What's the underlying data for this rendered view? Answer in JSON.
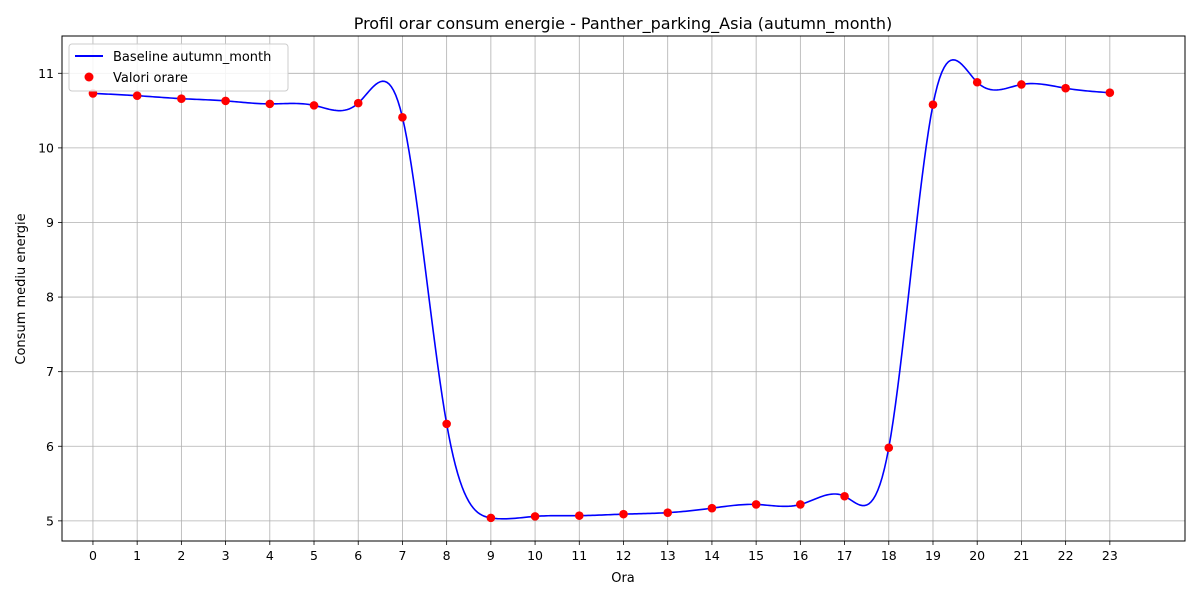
{
  "chart_data": {
    "type": "line",
    "title": "Profil orar consum energie - Panther_parking_Asia (autumn_month)",
    "xlabel": "Ora",
    "ylabel": "Consum mediu energie",
    "x": [
      0,
      1,
      2,
      3,
      4,
      5,
      6,
      7,
      8,
      9,
      10,
      11,
      12,
      13,
      14,
      15,
      16,
      17,
      18,
      19,
      20,
      21,
      22,
      23
    ],
    "x_ticks": [
      "0",
      "1",
      "2",
      "3",
      "4",
      "5",
      "6",
      "7",
      "8",
      "9",
      "10",
      "11",
      "12",
      "13",
      "14",
      "15",
      "16",
      "17",
      "18",
      "19",
      "20",
      "21",
      "22",
      "23"
    ],
    "xlim": [
      -0.7,
      24.7
    ],
    "y_ticks": [
      "5",
      "6",
      "7",
      "8",
      "9",
      "10",
      "11"
    ],
    "ylim": [
      4.73,
      11.5
    ],
    "grid": true,
    "legend_position": "top-left",
    "series": [
      {
        "name": "Baseline autumn_month",
        "style": "smooth-line",
        "color": "#0000ff",
        "values": [
          10.73,
          10.7,
          10.66,
          10.63,
          10.59,
          10.57,
          10.6,
          10.41,
          6.3,
          5.04,
          5.06,
          5.07,
          5.09,
          5.11,
          5.17,
          5.22,
          5.22,
          5.33,
          5.98,
          10.58,
          10.88,
          10.85,
          10.8,
          10.74
        ]
      },
      {
        "name": "Valori orare",
        "style": "scatter",
        "color": "#ff0000",
        "values": [
          10.73,
          10.7,
          10.66,
          10.63,
          10.59,
          10.57,
          10.6,
          10.41,
          6.3,
          5.04,
          5.06,
          5.07,
          5.09,
          5.11,
          5.17,
          5.22,
          5.22,
          5.33,
          5.98,
          10.58,
          10.88,
          10.85,
          10.8,
          10.74
        ]
      }
    ]
  }
}
